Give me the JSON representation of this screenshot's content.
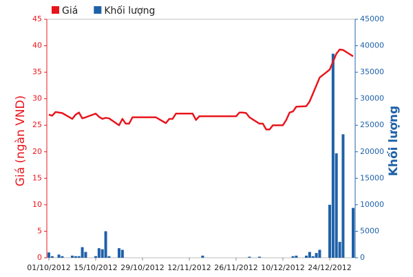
{
  "chart_data": {
    "type": "combo",
    "legend": "top-left",
    "y_label": "Giá (ngàn VND)",
    "y2_label": "Khối lượng",
    "x": [
      "2012-10-01",
      "2012-10-02",
      "2012-10-03",
      "2012-10-04",
      "2012-10-05",
      "2012-10-08",
      "2012-10-09",
      "2012-10-10",
      "2012-10-11",
      "2012-10-12",
      "2012-10-15",
      "2012-10-16",
      "2012-10-17",
      "2012-10-18",
      "2012-10-19",
      "2012-10-22",
      "2012-10-23",
      "2012-10-24",
      "2012-10-25",
      "2012-10-26",
      "2012-10-29",
      "2012-10-30",
      "2012-10-31",
      "2012-11-01",
      "2012-11-02",
      "2012-11-05",
      "2012-11-06",
      "2012-11-07",
      "2012-11-08",
      "2012-11-09",
      "2012-11-12",
      "2012-11-13",
      "2012-11-14",
      "2012-11-15",
      "2012-11-16",
      "2012-11-19",
      "2012-11-20",
      "2012-11-21",
      "2012-11-22",
      "2012-11-23",
      "2012-11-26",
      "2012-11-27",
      "2012-11-28",
      "2012-11-29",
      "2012-11-30",
      "2012-12-03",
      "2012-12-04",
      "2012-12-05",
      "2012-12-06",
      "2012-12-07",
      "2012-12-10",
      "2012-12-11",
      "2012-12-12",
      "2012-12-13",
      "2012-12-14",
      "2012-12-17",
      "2012-12-18",
      "2012-12-19",
      "2012-12-20",
      "2012-12-21",
      "2012-12-24",
      "2012-12-25",
      "2012-12-26",
      "2012-12-27",
      "2012-12-28",
      "2012-12-31"
    ],
    "series": [
      {
        "name": "Giá",
        "type": "line",
        "color": "#e8141b",
        "axis": "y",
        "values": [
          27,
          26.8,
          27.5,
          27.4,
          27.3,
          26.2,
          27,
          27.4,
          26.3,
          26.5,
          27.2,
          26.6,
          26.2,
          26.4,
          26.3,
          25,
          26.2,
          25.3,
          25.3,
          26.5,
          26.5,
          26.5,
          26.5,
          26.5,
          26.5,
          25.4,
          26.2,
          26.2,
          27.2,
          27.2,
          27.2,
          27.2,
          26,
          26.7,
          26.7,
          26.7,
          26.7,
          26.7,
          26.7,
          26.7,
          26.7,
          27.4,
          27.4,
          27.3,
          26.5,
          25.3,
          25.3,
          24.2,
          24.2,
          25,
          25,
          26,
          27.4,
          27.6,
          28.5,
          28.6,
          29.5,
          31,
          32.5,
          34,
          35.5,
          37,
          38.5,
          39.3,
          39.2,
          38
        ]
      },
      {
        "name": "Khối lượng",
        "type": "bar",
        "color": "#1f61a8",
        "axis": "y2",
        "values": [
          1000,
          300,
          0,
          600,
          300,
          400,
          300,
          300,
          2000,
          1100,
          300,
          1800,
          1600,
          5000,
          300,
          1800,
          1500,
          0,
          0,
          0,
          0,
          0,
          0,
          0,
          0,
          0,
          0,
          0,
          0,
          0,
          0,
          0,
          0,
          0,
          400,
          0,
          0,
          0,
          0,
          0,
          0,
          0,
          0,
          0,
          200,
          200,
          0,
          0,
          0,
          0,
          0,
          0,
          0,
          300,
          400,
          400,
          1100,
          300,
          900,
          1500,
          10000,
          38500,
          19700,
          3000,
          23300,
          9400
        ]
      }
    ],
    "xlim": [
      "2012-10-01",
      "2012-12-31"
    ],
    "xticks": [
      {
        "value": "2012-10-01",
        "label": "01/10/2012"
      },
      {
        "value": "2012-10-15",
        "label": "15/10/2012"
      },
      {
        "value": "2012-10-29",
        "label": "29/10/2012"
      },
      {
        "value": "2012-11-12",
        "label": "12/11/2012"
      },
      {
        "value": "2012-11-26",
        "label": "26/11/2012"
      },
      {
        "value": "2012-12-10",
        "label": "10/12/2012"
      },
      {
        "value": "2012-12-24",
        "label": "24/12/2012"
      }
    ],
    "ylim": [
      0,
      45
    ],
    "yticks": [
      0,
      5,
      10,
      15,
      20,
      25,
      30,
      35,
      40,
      45
    ],
    "y2lim": [
      0,
      45000
    ],
    "y2ticks": [
      0,
      5000,
      10000,
      15000,
      20000,
      25000,
      30000,
      35000,
      40000,
      45000
    ]
  }
}
